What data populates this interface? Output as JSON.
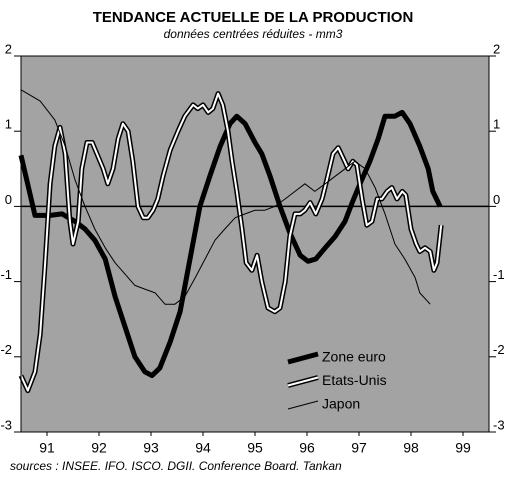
{
  "chart_data": {
    "type": "line",
    "title": "TENDANCE ACTUELLE DE LA PRODUCTION",
    "subtitle": "données centrées réduites - mm3",
    "source": "sources : INSEE. IFO. ISCO. DGII. Conference Board. Tankan",
    "xlim": [
      91,
      100
    ],
    "xticks": [
      {
        "value": 91.5,
        "label": "91"
      },
      {
        "value": 92.5,
        "label": "92"
      },
      {
        "value": 93.5,
        "label": "93"
      },
      {
        "value": 94.5,
        "label": "94"
      },
      {
        "value": 95.5,
        "label": "95"
      },
      {
        "value": 96.5,
        "label": "96"
      },
      {
        "value": 97.5,
        "label": "97"
      },
      {
        "value": 98.5,
        "label": "98"
      },
      {
        "value": 99.5,
        "label": "99"
      }
    ],
    "ylim": [
      -3,
      2
    ],
    "yticks": [
      -3,
      -2,
      -1,
      0,
      1,
      2
    ],
    "y2lim": [
      -3,
      2
    ],
    "y2ticks": [
      -3,
      -2,
      -1,
      0,
      1,
      2
    ],
    "zero_line": true,
    "background": "#a3a3a3",
    "series": [
      {
        "name": "Zone euro",
        "color": "#000000",
        "line_width": 5,
        "x": [
          91.0,
          91.27,
          91.56,
          91.79,
          92.04,
          92.23,
          92.42,
          92.62,
          92.81,
          93.0,
          93.19,
          93.38,
          93.52,
          93.67,
          93.87,
          94.06,
          94.25,
          94.44,
          94.63,
          94.83,
          95.02,
          95.15,
          95.31,
          95.5,
          95.63,
          95.79,
          95.98,
          96.17,
          96.37,
          96.52,
          96.67,
          96.85,
          97.04,
          97.23,
          97.37,
          97.52,
          97.71,
          97.87,
          98.0,
          98.19,
          98.33,
          98.48,
          98.67,
          98.83,
          98.92,
          99.06
        ],
        "values": [
          0.68,
          -0.12,
          -0.12,
          -0.1,
          -0.2,
          -0.3,
          -0.45,
          -0.7,
          -1.2,
          -1.6,
          -2.0,
          -2.2,
          -2.25,
          -2.15,
          -1.8,
          -1.4,
          -0.7,
          0.0,
          0.4,
          0.8,
          1.1,
          1.2,
          1.1,
          0.85,
          0.7,
          0.4,
          0.0,
          -0.35,
          -0.65,
          -0.73,
          -0.7,
          -0.55,
          -0.4,
          -0.2,
          0.05,
          0.3,
          0.6,
          0.9,
          1.2,
          1.2,
          1.25,
          1.1,
          0.8,
          0.5,
          0.2,
          0.0
        ]
      },
      {
        "name": "Etats-Unis",
        "color": "#ffffff",
        "outline": "#000000",
        "line_width": 2,
        "x": [
          91.0,
          91.13,
          91.27,
          91.37,
          91.46,
          91.56,
          91.65,
          91.75,
          91.85,
          91.94,
          92.0,
          92.1,
          92.17,
          92.27,
          92.37,
          92.46,
          92.58,
          92.67,
          92.77,
          92.87,
          92.96,
          93.06,
          93.15,
          93.25,
          93.35,
          93.44,
          93.54,
          93.63,
          93.73,
          93.87,
          94.02,
          94.15,
          94.31,
          94.4,
          94.5,
          94.6,
          94.69,
          94.79,
          94.88,
          94.98,
          95.06,
          95.15,
          95.25,
          95.33,
          95.44,
          95.54,
          95.63,
          95.75,
          95.88,
          95.98,
          96.08,
          96.17,
          96.27,
          96.37,
          96.46,
          96.56,
          96.67,
          96.79,
          96.88,
          97.0,
          97.1,
          97.19,
          97.29,
          97.38,
          97.46,
          97.56,
          97.65,
          97.75,
          97.85,
          97.94,
          98.04,
          98.13,
          98.23,
          98.33,
          98.4,
          98.5,
          98.6,
          98.67,
          98.77,
          98.87,
          98.94,
          99.0,
          99.08
        ],
        "values": [
          -2.25,
          -2.45,
          -2.2,
          -1.7,
          -0.8,
          0.3,
          0.8,
          1.05,
          0.7,
          -0.2,
          -0.5,
          -0.2,
          0.5,
          0.85,
          0.85,
          0.7,
          0.5,
          0.3,
          0.5,
          0.9,
          1.1,
          1.0,
          0.6,
          0.0,
          -0.15,
          -0.15,
          -0.05,
          0.1,
          0.4,
          0.75,
          1.0,
          1.2,
          1.35,
          1.3,
          1.35,
          1.25,
          1.3,
          1.5,
          1.35,
          1.0,
          0.6,
          0.2,
          -0.3,
          -0.75,
          -0.85,
          -0.65,
          -1.0,
          -1.35,
          -1.4,
          -1.35,
          -1.0,
          -0.4,
          -0.1,
          -0.1,
          -0.05,
          0.05,
          -0.1,
          0.1,
          0.35,
          0.7,
          0.78,
          0.65,
          0.5,
          0.6,
          0.55,
          0.1,
          -0.25,
          -0.2,
          0.1,
          0.1,
          0.2,
          0.25,
          0.1,
          0.2,
          0.15,
          -0.3,
          -0.5,
          -0.6,
          -0.55,
          -0.6,
          -0.85,
          -0.75,
          -0.25
        ]
      },
      {
        "name": "Japon",
        "color": "#000000",
        "line_width": 1,
        "x": [
          91.0,
          91.37,
          91.65,
          91.85,
          92.04,
          92.23,
          92.42,
          92.62,
          92.81,
          93.0,
          93.19,
          93.38,
          93.58,
          93.77,
          93.96,
          94.15,
          94.35,
          94.54,
          94.73,
          94.92,
          95.12,
          95.31,
          95.5,
          95.69,
          95.88,
          96.08,
          96.27,
          96.46,
          96.65,
          96.85,
          97.04,
          97.23,
          97.42,
          97.62,
          97.81,
          98.0,
          98.19,
          98.38,
          98.58,
          98.67,
          98.87
        ],
        "values": [
          1.55,
          1.4,
          1.15,
          0.8,
          0.35,
          0.0,
          -0.3,
          -0.55,
          -0.75,
          -0.9,
          -1.05,
          -1.1,
          -1.15,
          -1.3,
          -1.3,
          -1.2,
          -0.95,
          -0.7,
          -0.45,
          -0.3,
          -0.15,
          -0.1,
          -0.05,
          -0.05,
          0.0,
          0.1,
          0.2,
          0.3,
          0.2,
          0.3,
          0.4,
          0.5,
          0.6,
          0.5,
          0.25,
          -0.1,
          -0.5,
          -0.7,
          -0.95,
          -1.15,
          -1.3
        ]
      }
    ]
  }
}
